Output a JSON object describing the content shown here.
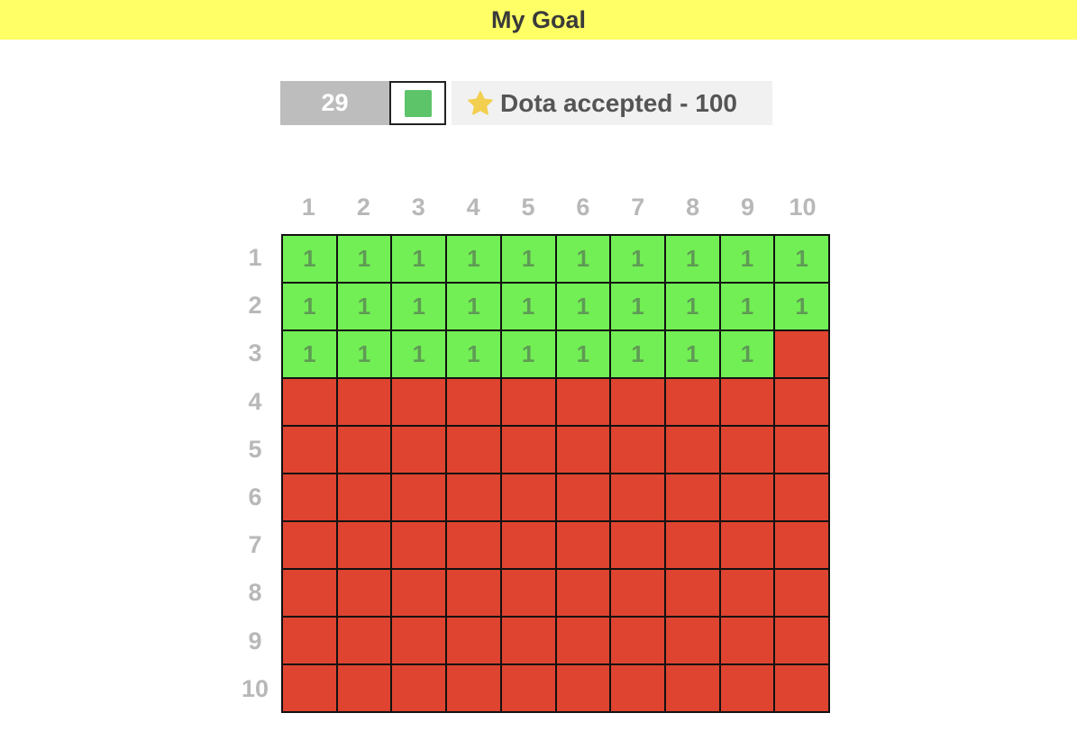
{
  "header": {
    "title": "My Goal"
  },
  "toolbar": {
    "count": "29",
    "swatch_color": "#5dc46a",
    "goal_label": "Dota accepted - 100",
    "star_color": "#f3cf4f"
  },
  "grid": {
    "col_labels": [
      "1",
      "2",
      "3",
      "4",
      "5",
      "6",
      "7",
      "8",
      "9",
      "10"
    ],
    "row_labels": [
      "1",
      "2",
      "3",
      "4",
      "5",
      "6",
      "7",
      "8",
      "9",
      "10"
    ],
    "filled_count": 29,
    "filled_value": "1",
    "filled_color": "#72ef55",
    "empty_color": "#de4430"
  }
}
